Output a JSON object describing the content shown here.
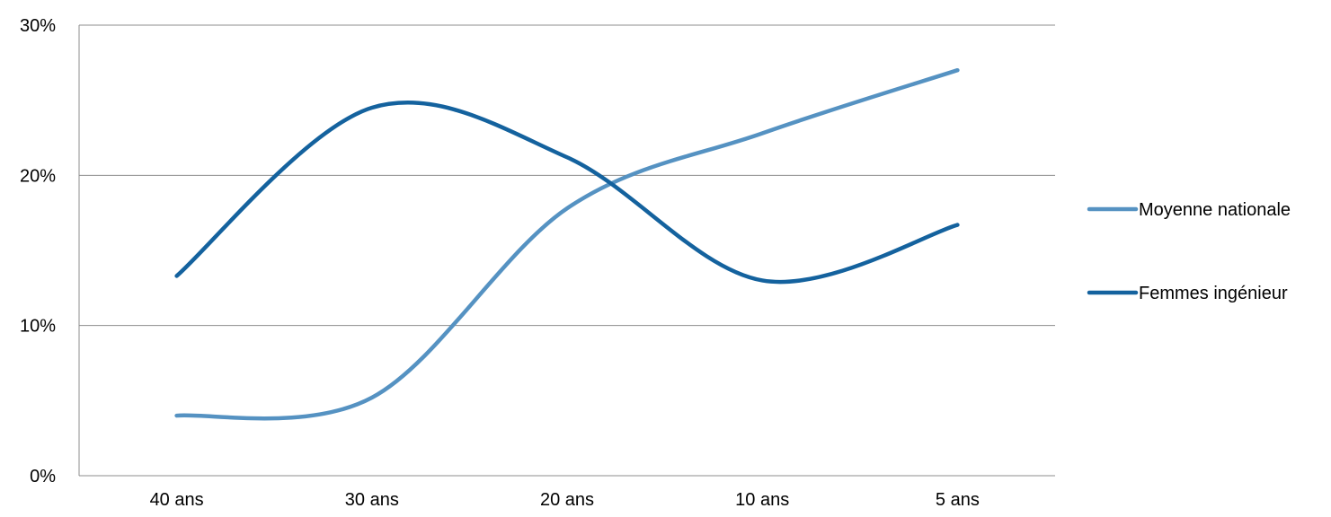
{
  "chart_data": {
    "type": "line",
    "smooth": true,
    "categories": [
      "40 ans",
      "30 ans",
      "20 ans",
      "10 ans",
      "5 ans"
    ],
    "ylim": [
      0,
      30
    ],
    "yticks": [
      0,
      10,
      20,
      30
    ],
    "ytick_labels": [
      "0%",
      "10%",
      "20%",
      "30%"
    ],
    "grid": true,
    "legend_position": "right",
    "series": [
      {
        "name": "Moyenne nationale",
        "color": "#5592C2",
        "values": [
          4.0,
          5.2,
          17.8,
          22.8,
          27.0
        ]
      },
      {
        "name": "Femmes ingénieur",
        "color": "#14629E",
        "values": [
          13.3,
          24.5,
          21.2,
          13.0,
          16.7
        ]
      }
    ]
  }
}
